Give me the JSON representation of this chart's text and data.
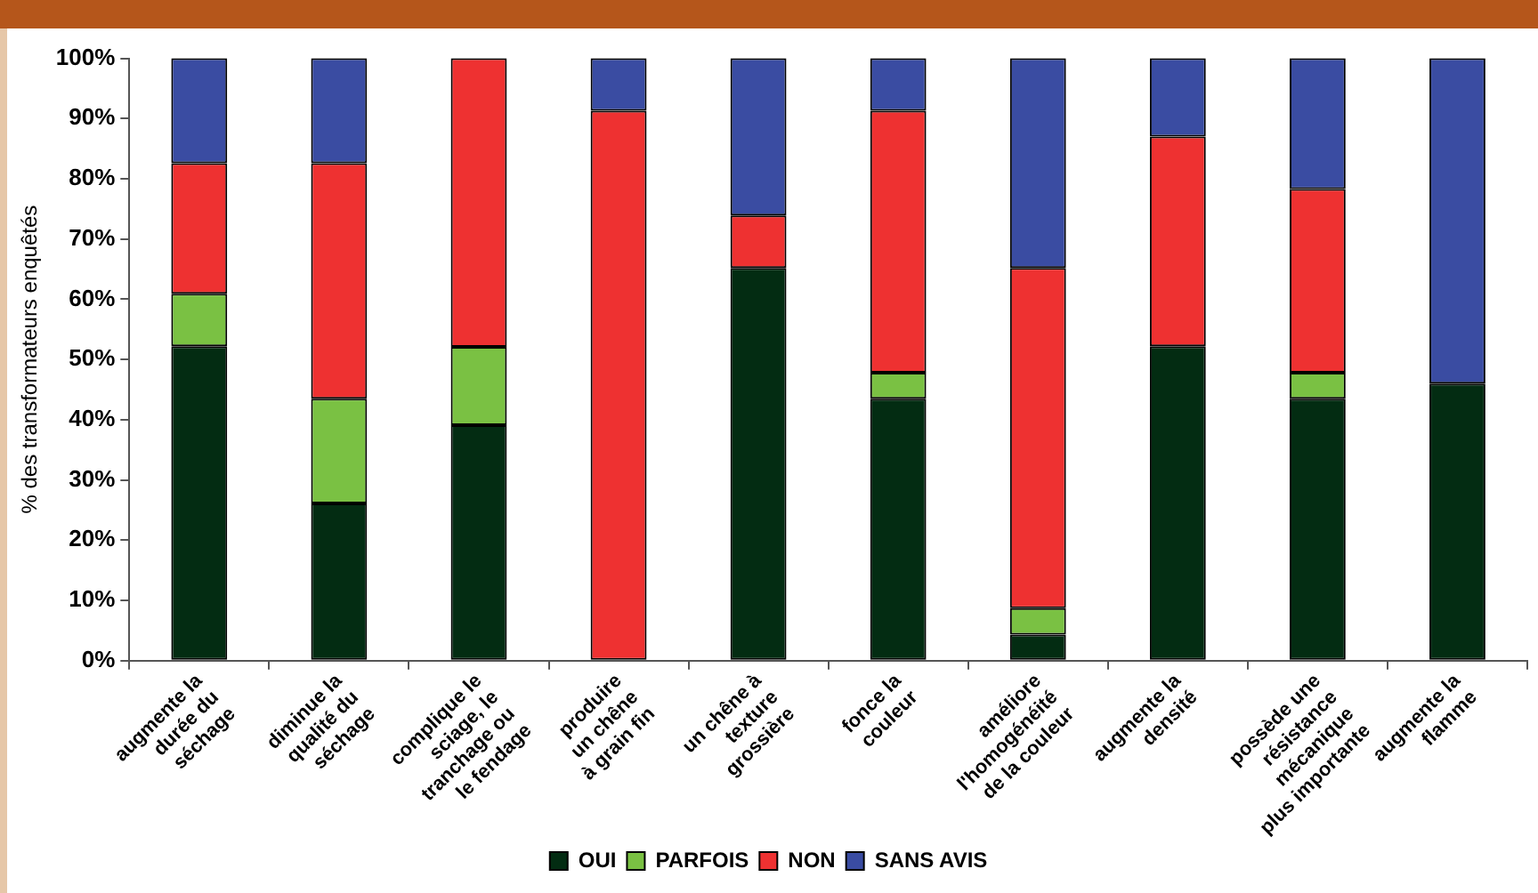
{
  "chart_data": {
    "type": "bar",
    "stacked": true,
    "ylabel": "% des transformateurs enquêtés",
    "categories": [
      "augmente la\ndurée du\nséchage",
      "diminue la\nqualité du\nséchage",
      "complique le\nsciage, le\ntranchage ou\nle fendage",
      "produire\nun chêne\nà grain fin",
      "un chêne à\ntexture\ngrossière",
      "fonce la\ncouleur",
      "améliore\nl'homogénéité\nde la couleur",
      "augmente la\ndensité",
      "possède une\nrésistance\nmécanique\nplus importante",
      "augmente la\nflamme"
    ],
    "series": [
      {
        "name": "OUI",
        "color": "#032c12",
        "values": [
          52.2,
          26.1,
          39.1,
          0,
          65.2,
          43.5,
          4.3,
          52.2,
          43.5,
          46
        ]
      },
      {
        "name": "PARFOIS",
        "color": "#7ac143",
        "values": [
          8.7,
          17.4,
          13,
          0,
          0,
          4.3,
          4.4,
          0,
          4.3,
          0
        ]
      },
      {
        "name": "NON",
        "color": "#ee3131",
        "values": [
          21.7,
          39.1,
          47.9,
          91.3,
          8.7,
          43.5,
          56.5,
          34.8,
          30.5,
          0
        ]
      },
      {
        "name": "SANS AVIS",
        "color": "#3a4ca2",
        "values": [
          17.4,
          17.4,
          0,
          8.7,
          26.1,
          8.7,
          34.8,
          13,
          21.7,
          54
        ]
      }
    ],
    "ylim": [
      0,
      100
    ],
    "yticks": [
      {
        "value": 0,
        "label": "0%"
      },
      {
        "value": 10,
        "label": "10%"
      },
      {
        "value": 20,
        "label": "20%"
      },
      {
        "value": 30,
        "label": "30%"
      },
      {
        "value": 40,
        "label": "40%"
      },
      {
        "value": 50,
        "label": "50%"
      },
      {
        "value": 60,
        "label": "60%"
      },
      {
        "value": 70,
        "label": "70%"
      },
      {
        "value": 80,
        "label": "80%"
      },
      {
        "value": 90,
        "label": "90%"
      },
      {
        "value": 100,
        "label": "100%"
      }
    ],
    "grid": false,
    "legend": "bottom"
  }
}
